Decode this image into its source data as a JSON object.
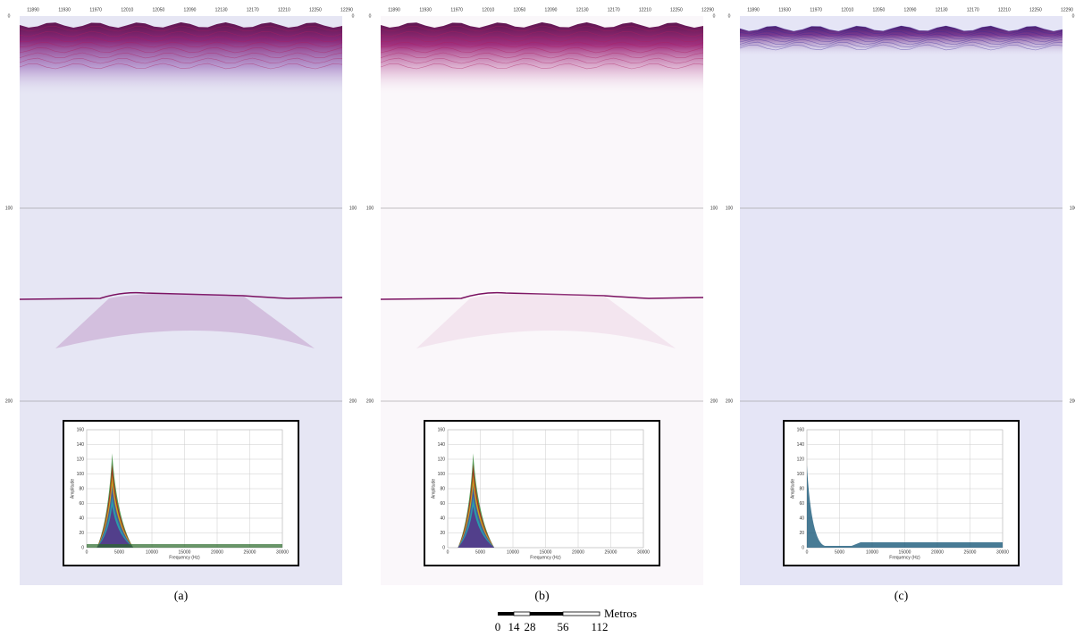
{
  "panels": [
    {
      "caption": "(a)",
      "trace_labels": [
        "11890",
        "11930",
        "11970",
        "12010",
        "12050",
        "12090",
        "12130",
        "12170",
        "12210",
        "12250",
        "12290"
      ],
      "depth_labels": [
        "0",
        "100",
        "200"
      ],
      "inset": {
        "x_label": "Frequency (Hz)",
        "y_label": "Amplitude",
        "x_ticks": [
          "0",
          "5000",
          "10000",
          "15000",
          "20000",
          "25000",
          "30000"
        ],
        "y_ticks": [
          "0",
          "20",
          "40",
          "60",
          "80",
          "100",
          "120",
          "140",
          "160"
        ]
      }
    },
    {
      "caption": "(b)",
      "trace_labels": [
        "11890",
        "11930",
        "11970",
        "12010",
        "12050",
        "12090",
        "12130",
        "12170",
        "12210",
        "12250",
        "12290"
      ],
      "depth_labels": [
        "0",
        "100",
        "200"
      ],
      "inset": {
        "x_label": "Frequency (Hz)",
        "y_label": "Amplitude",
        "x_ticks": [
          "0",
          "5000",
          "10000",
          "15000",
          "20000",
          "25000",
          "30000"
        ],
        "y_ticks": [
          "0",
          "20",
          "40",
          "60",
          "80",
          "100",
          "120",
          "140",
          "160"
        ]
      }
    },
    {
      "caption": "(c)",
      "trace_labels": [
        "11890",
        "11930",
        "11970",
        "12010",
        "12050",
        "12090",
        "12130",
        "12170",
        "12210",
        "12250",
        "12290"
      ],
      "depth_labels": [
        "0",
        "100",
        "200"
      ],
      "inset": {
        "x_label": "Frequency (Hz)",
        "y_label": "Amplitude",
        "x_ticks": [
          "0",
          "5000",
          "10000",
          "15000",
          "20000",
          "25000",
          "30000"
        ],
        "y_ticks": [
          "0",
          "20",
          "40",
          "60",
          "80",
          "100",
          "120",
          "140",
          "160"
        ]
      }
    }
  ],
  "scale_bar": {
    "unit": "Metros",
    "labels": [
      "0",
      "14",
      "28",
      "56",
      "112"
    ]
  }
}
